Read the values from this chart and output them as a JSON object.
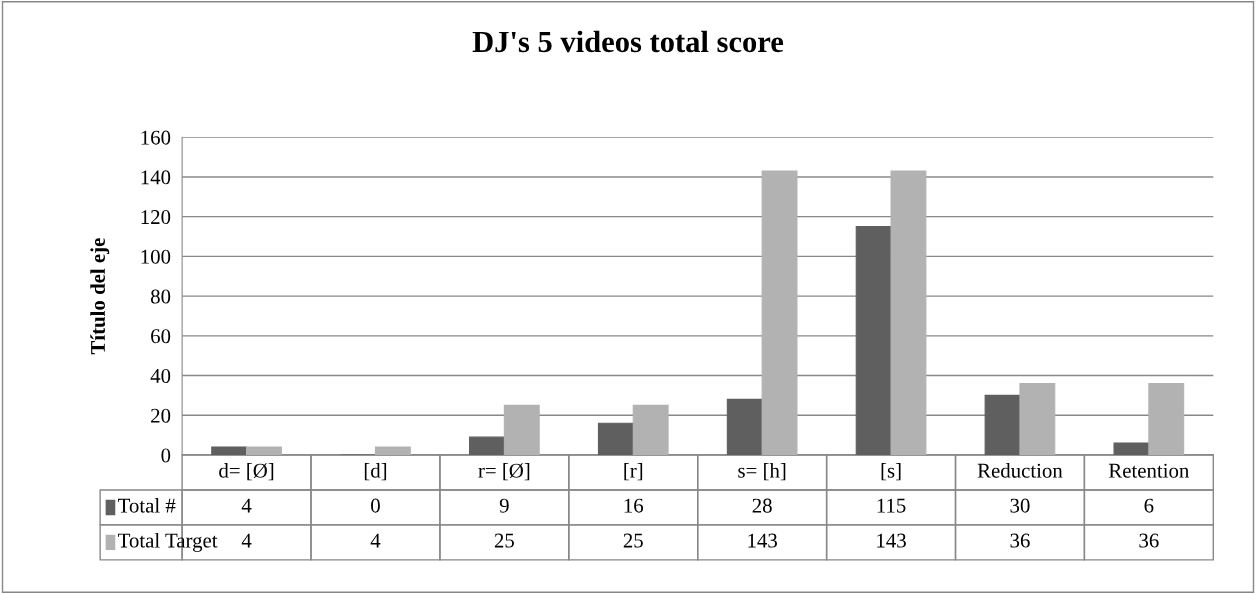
{
  "chart_data": {
    "type": "bar",
    "title": "DJ's 5 videos total score",
    "ylabel": "Título del eje",
    "categories": [
      "d= [Ø]",
      "[d]",
      "r= [Ø]",
      "[r]",
      "s= [h]",
      "[s]",
      "Reduction",
      "Retention"
    ],
    "series": [
      {
        "name": "Total #",
        "color": "#5f5f5f",
        "values": [
          4,
          0,
          9,
          16,
          28,
          115,
          30,
          6
        ]
      },
      {
        "name": "Total Target",
        "color": "#b2b2b2",
        "values": [
          4,
          4,
          25,
          25,
          143,
          143,
          36,
          36
        ]
      }
    ],
    "ylim": [
      0,
      160
    ],
    "yticks": [
      0,
      20,
      40,
      60,
      80,
      100,
      120,
      140,
      160
    ],
    "grid": "y",
    "data_labels": true,
    "legend": "bottom left"
  }
}
